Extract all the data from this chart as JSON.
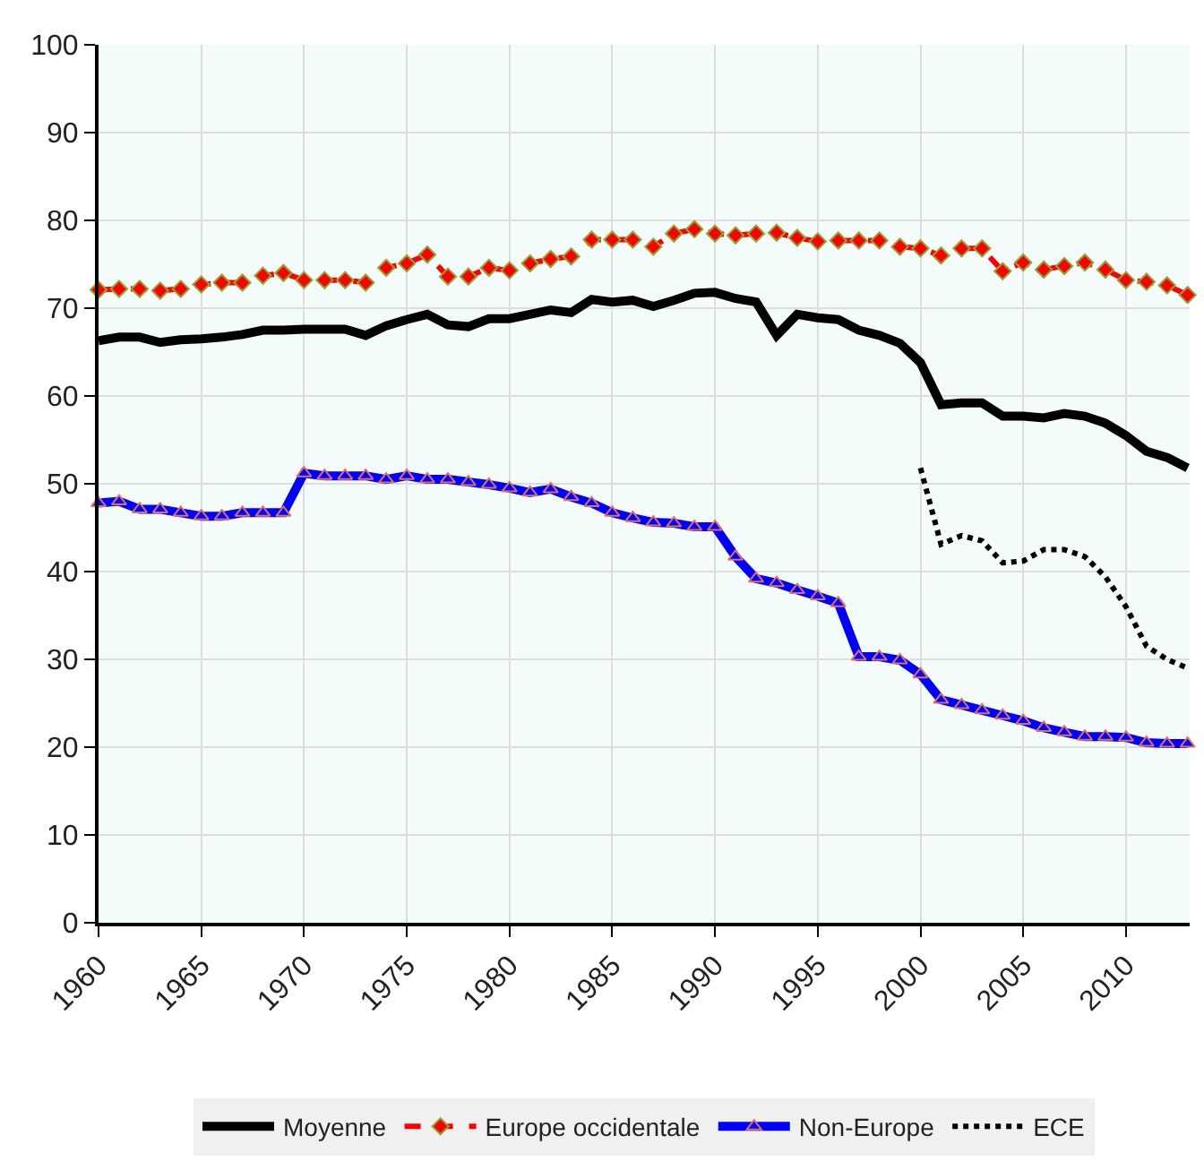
{
  "chart_data": {
    "type": "line",
    "x": [
      1960,
      1961,
      1962,
      1963,
      1964,
      1965,
      1966,
      1967,
      1968,
      1969,
      1970,
      1971,
      1972,
      1973,
      1974,
      1975,
      1976,
      1977,
      1978,
      1979,
      1980,
      1981,
      1982,
      1983,
      1984,
      1985,
      1986,
      1987,
      1988,
      1989,
      1990,
      1991,
      1992,
      1993,
      1994,
      1995,
      1996,
      1997,
      1998,
      1999,
      2000,
      2001,
      2002,
      2003,
      2004,
      2005,
      2006,
      2007,
      2008,
      2009,
      2010,
      2011,
      2012,
      2013
    ],
    "series": [
      {
        "name": "Moyenne",
        "color": "#000000",
        "line_style": "solid",
        "marker": "none",
        "values": [
          66.3,
          66.7,
          66.7,
          66.1,
          66.4,
          66.5,
          66.7,
          67,
          67.5,
          67.5,
          67.6,
          67.6,
          67.6,
          66.9,
          68,
          68.7,
          69.3,
          68.1,
          67.9,
          68.8,
          68.8,
          69.3,
          69.8,
          69.5,
          71,
          70.7,
          70.9,
          70.2,
          70.9,
          71.7,
          71.8,
          71.1,
          70.7,
          66.9,
          69.3,
          68.9,
          68.7,
          67.5,
          66.9,
          66,
          63.8,
          59,
          59.2,
          59.2,
          57.7,
          57.7,
          57.5,
          58,
          57.7,
          56.9,
          55.5,
          53.7,
          53,
          51.8
        ]
      },
      {
        "name": "Europe occidentale",
        "color": "#ff0000",
        "line_style": "dashed",
        "marker": "diamond",
        "values": [
          72.1,
          72.2,
          72.2,
          72,
          72.2,
          72.7,
          72.9,
          72.9,
          73.7,
          74,
          73.2,
          73.2,
          73.2,
          72.9,
          74.6,
          75.1,
          76.1,
          73.6,
          73.6,
          74.6,
          74.3,
          75.1,
          75.6,
          75.9,
          77.8,
          77.8,
          77.8,
          77,
          78.5,
          79,
          78.5,
          78.3,
          78.5,
          78.6,
          78,
          77.6,
          77.7,
          77.7,
          77.7,
          77,
          76.8,
          76,
          76.8,
          76.8,
          74.2,
          75.2,
          74.4,
          74.8,
          75.2,
          74.4,
          73.2,
          73,
          72.6,
          71.5
        ]
      },
      {
        "name": "Non-Europe",
        "color": "#0000ff",
        "line_style": "solid",
        "marker": "triangle",
        "values": [
          47.8,
          48,
          47.1,
          47.1,
          46.7,
          46.3,
          46.3,
          46.7,
          46.7,
          46.7,
          51.2,
          50.9,
          50.9,
          50.9,
          50.5,
          50.9,
          50.5,
          50.5,
          50.2,
          49.9,
          49.5,
          49,
          49.4,
          48.5,
          47.8,
          46.7,
          46.1,
          45.6,
          45.5,
          45.1,
          45.1,
          41.7,
          39.2,
          38.7,
          37.9,
          37.2,
          36.4,
          30.3,
          30.3,
          29.9,
          28.3,
          25.4,
          24.8,
          24.2,
          23.6,
          23,
          22.2,
          21.7,
          21.2,
          21.2,
          21.1,
          20.5,
          20.4,
          20.4
        ]
      },
      {
        "name": "ECE",
        "color": "#000000",
        "line_style": "dotted",
        "marker": "none",
        "values": [
          null,
          null,
          null,
          null,
          null,
          null,
          null,
          null,
          null,
          null,
          null,
          null,
          null,
          null,
          null,
          null,
          null,
          null,
          null,
          null,
          null,
          null,
          null,
          null,
          null,
          null,
          null,
          null,
          null,
          null,
          null,
          null,
          null,
          null,
          null,
          null,
          null,
          null,
          null,
          null,
          51.8,
          43.1,
          44.1,
          43.5,
          41,
          41.2,
          42.5,
          42.5,
          41.7,
          39.4,
          36,
          31.5,
          30,
          29
        ]
      }
    ],
    "xlim": [
      1960,
      2013.1
    ],
    "xticks": [
      1960,
      1965,
      1970,
      1975,
      1980,
      1985,
      1990,
      1995,
      2000,
      2005,
      2010
    ],
    "ylim": [
      0,
      100
    ],
    "yticks": [
      0,
      10,
      20,
      30,
      40,
      50,
      60,
      70,
      80,
      90,
      100
    ],
    "grid": true,
    "legend": "bottom"
  }
}
